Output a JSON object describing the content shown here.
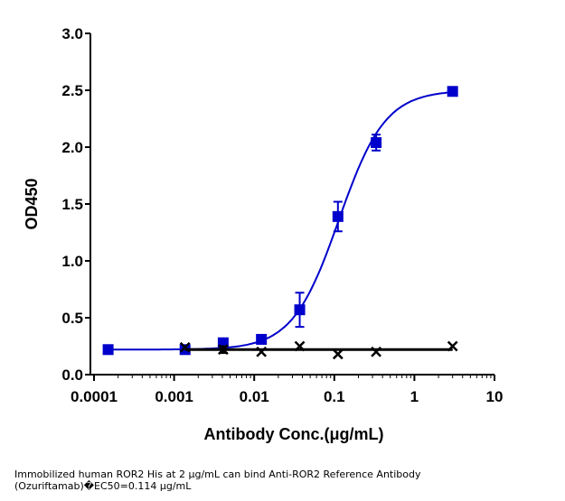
{
  "chart_data": {
    "type": "scatter",
    "title": "",
    "xlabel": "Antibody Conc.(μg/mL)",
    "ylabel": "OD450",
    "xscale": "log",
    "xlim": [
      0.0001,
      10
    ],
    "ylim": [
      0,
      3.0
    ],
    "xticks": [
      "0.0001",
      "0.001",
      "0.01",
      "0.1",
      "1",
      "10"
    ],
    "yticks": [
      "0.0",
      "0.5",
      "1.0",
      "1.5",
      "2.0",
      "2.5",
      "3.0"
    ],
    "grid": false,
    "series": [
      {
        "marker": "square",
        "color": "#0000cc",
        "fit": {
          "model": "4PL",
          "bottom": 0.22,
          "top": 2.5,
          "ec50": 0.114,
          "hill": 1.5
        },
        "points": [
          {
            "x": 0.00015,
            "y": 0.22,
            "err": 0
          },
          {
            "x": 0.00137,
            "y": 0.22,
            "err": 0
          },
          {
            "x": 0.0041,
            "y": 0.28,
            "err": 0
          },
          {
            "x": 0.0123,
            "y": 0.31,
            "err": 0
          },
          {
            "x": 0.037,
            "y": 0.57,
            "err": 0.15
          },
          {
            "x": 0.111,
            "y": 1.39,
            "err": 0.13
          },
          {
            "x": 0.333,
            "y": 2.04,
            "err": 0.07
          },
          {
            "x": 3.0,
            "y": 2.49,
            "err": 0
          }
        ]
      },
      {
        "marker": "cross",
        "color": "#000000",
        "fit": {
          "model": "flat",
          "value": 0.22
        },
        "points": [
          {
            "x": 0.00137,
            "y": 0.24,
            "err": 0
          },
          {
            "x": 0.0041,
            "y": 0.22,
            "err": 0.03
          },
          {
            "x": 0.0123,
            "y": 0.2,
            "err": 0
          },
          {
            "x": 0.037,
            "y": 0.25,
            "err": 0
          },
          {
            "x": 0.111,
            "y": 0.18,
            "err": 0
          },
          {
            "x": 0.333,
            "y": 0.2,
            "err": 0
          },
          {
            "x": 3.0,
            "y": 0.25,
            "err": 0
          }
        ]
      }
    ]
  },
  "caption": {
    "line1": "Immobilized human ROR2 His at 2  μg/mL can bind  Anti-ROR2 Reference Antibody",
    "line2": "(Ozuriftamab)�EC50=0.114 μg/mL"
  }
}
